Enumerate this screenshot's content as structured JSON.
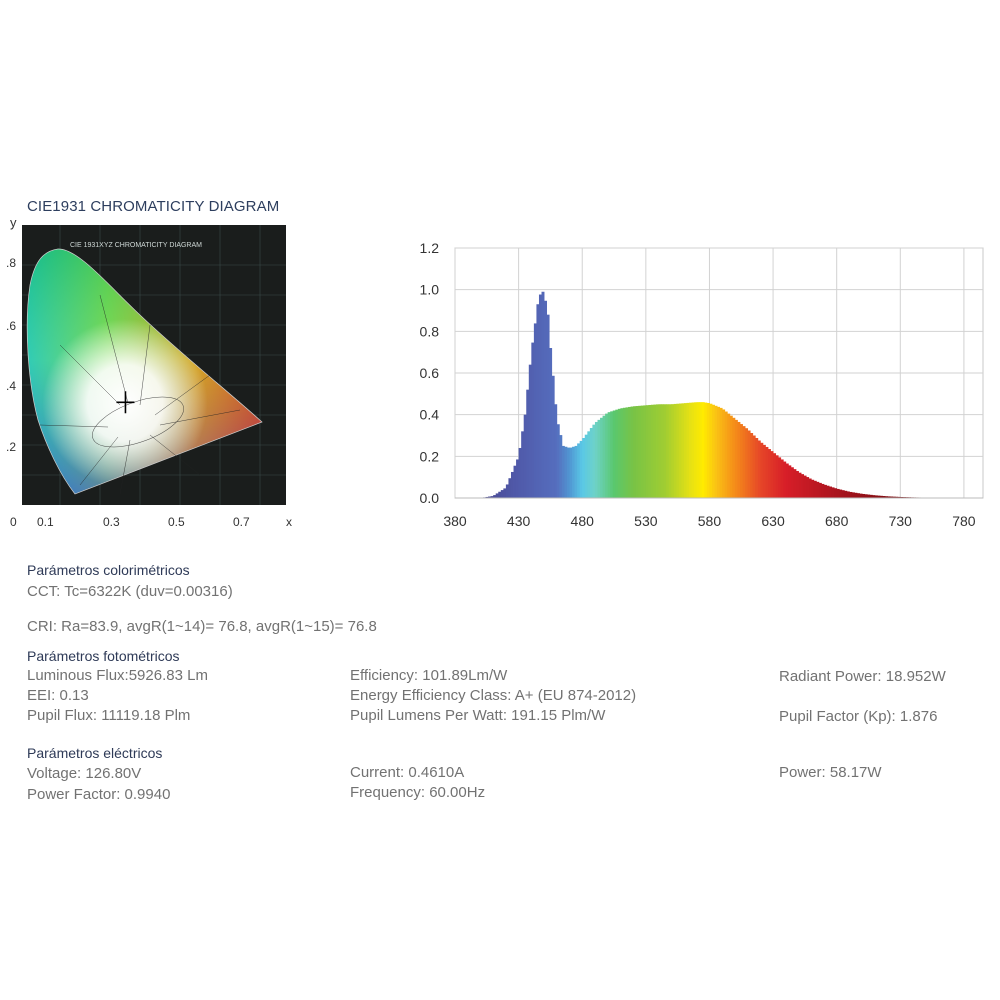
{
  "cie": {
    "heading": "CIE1931 CHROMATICITY DIAGRAM",
    "inner_title": "CIE 1931XYZ CHROMATICITY DIAGRAM",
    "y_axis_label": "y",
    "x_axis_label": "x",
    "y_ticks": [
      ".8",
      ".6",
      ".4",
      ".2"
    ],
    "x_ticks": [
      "0",
      "0.1",
      "0.3",
      "0.5",
      "0.7"
    ],
    "point": {
      "x": 0.3135,
      "y": 0.3302
    }
  },
  "chart_data": {
    "type": "area",
    "x": [
      380,
      390,
      400,
      410,
      420,
      430,
      435,
      440,
      445,
      448,
      450,
      453,
      455,
      458,
      460,
      465,
      470,
      475,
      480,
      490,
      500,
      510,
      520,
      530,
      540,
      550,
      560,
      570,
      575,
      580,
      590,
      600,
      610,
      620,
      630,
      640,
      650,
      660,
      670,
      680,
      690,
      700,
      710,
      720,
      730,
      740,
      750,
      760,
      770,
      780
    ],
    "y": [
      0,
      0,
      0,
      0.01,
      0.05,
      0.2,
      0.4,
      0.7,
      0.93,
      1.0,
      0.98,
      0.88,
      0.72,
      0.52,
      0.38,
      0.25,
      0.24,
      0.25,
      0.28,
      0.36,
      0.41,
      0.43,
      0.44,
      0.445,
      0.45,
      0.45,
      0.455,
      0.46,
      0.46,
      0.455,
      0.43,
      0.38,
      0.33,
      0.27,
      0.22,
      0.17,
      0.125,
      0.09,
      0.065,
      0.045,
      0.03,
      0.02,
      0.013,
      0.008,
      0.005,
      0.003,
      0.002,
      0.001,
      0.0005,
      0
    ],
    "xticks": [
      "380",
      "430",
      "480",
      "530",
      "580",
      "630",
      "680",
      "730",
      "780"
    ],
    "yticks": [
      "0.0",
      "0.2",
      "0.4",
      "0.6",
      "0.8",
      "1.0",
      "1.2"
    ],
    "xlim": [
      380,
      795
    ],
    "ylim": [
      0,
      1.2
    ],
    "grid": true
  },
  "sections": {
    "colorimetric": {
      "title": "Parámetros colorimétricos",
      "cct": "CCT: Tc=6322K (duv=0.00316)",
      "cri": "CRI: Ra=83.9, avgR(1~14)= 76.8, avgR(1~15)= 76.8"
    },
    "photometric": {
      "title": "Parámetros fotométricos",
      "luminous_flux": "Luminous Flux:5926.83 Lm",
      "eei": "EEI: 0.13",
      "pupil_flux": "Pupil Flux: 11119.18 Plm",
      "efficiency": "Efficiency: 101.89Lm/W",
      "energy_class": "Energy Efficiency Class: A+ (EU 874-2012)",
      "pupil_lumens": "Pupil Lumens Per Watt: 191.15 Plm/W",
      "radiant_power": "Radiant Power: 18.952W",
      "pupil_factor": "Pupil Factor (Kp): 1.876"
    },
    "electrical": {
      "title": "Parámetros eléctricos",
      "voltage": "Voltage: 126.80V",
      "power_factor": "Power Factor: 0.9940",
      "current": "Current: 0.4610A",
      "frequency": "Frequency: 60.00Hz",
      "power": "Power: 58.17W"
    }
  }
}
